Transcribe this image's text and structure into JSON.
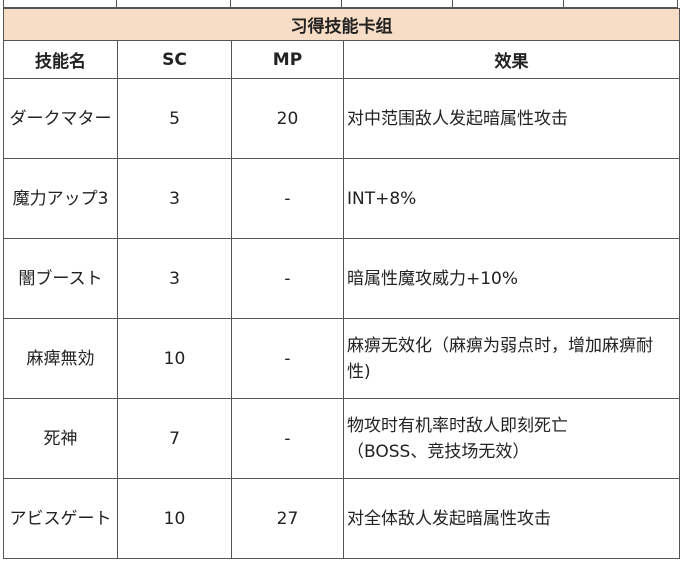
{
  "table": {
    "title": "习得技能卡组",
    "header": [
      "技能名",
      "SC",
      "MP",
      "效果"
    ],
    "rows": [
      [
        "ダークマター",
        "5",
        "20",
        "对中范围敌人发起暗属性攻击"
      ],
      [
        "魔力アップ3",
        "3",
        "-",
        "INT+8%"
      ],
      [
        "闇ブースト",
        "3",
        "-",
        "暗属性魔攻威力+10%"
      ],
      [
        "麻痺無効",
        "10",
        "-",
        "麻痹无效化（麻痹为弱点时，增加麻痹耐性)"
      ],
      [
        "死神",
        "7",
        "-",
        "物攻时有机率时敌人即刻死亡\n（BOSS、竞技场无效）"
      ],
      [
        "アビスゲート",
        "10",
        "27",
        "对全体敌人发起暗属性攻击"
      ]
    ]
  }
}
